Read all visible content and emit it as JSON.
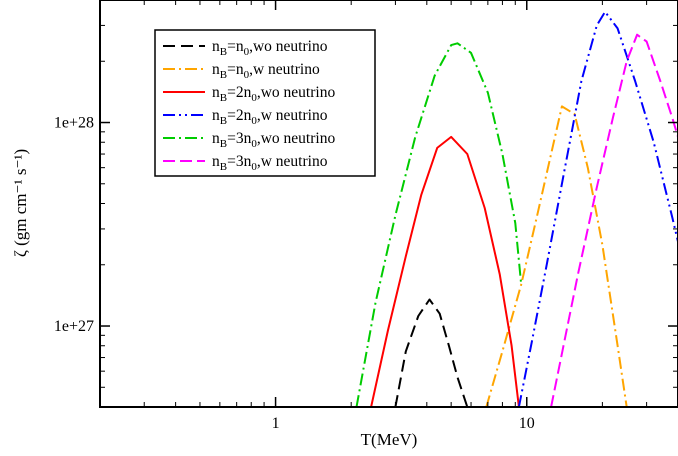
{
  "chart_data": {
    "type": "line",
    "xlabel": "T(MeV)",
    "ylabel": "ζ (gm cm⁻¹ s⁻¹)",
    "x_scale": "log",
    "y_scale": "log",
    "xlim": [
      0.2,
      40
    ],
    "ylim": [
      4e+26,
      4e+28
    ],
    "x_ticks": [
      {
        "value": 1,
        "label": "1"
      },
      {
        "value": 10,
        "label": "10"
      }
    ],
    "y_ticks": [
      {
        "value": 1e+27,
        "label": "1e+27"
      },
      {
        "value": 1e+28,
        "label": "1e+28"
      }
    ],
    "legend_position": "top-left",
    "grid": false,
    "series": [
      {
        "name": "n_B=n_0,wo neutrino",
        "legend": {
          "pre": "n",
          "sub1": "B",
          "mid": "=n",
          "sub2": "0",
          "post": ",wo neutrino"
        },
        "color": "#000000",
        "dash": "12,6",
        "x": [
          3.0,
          3.3,
          3.7,
          4.1,
          4.5,
          4.9,
          5.3,
          5.8
        ],
        "y": [
          4e+26,
          7.5e+26,
          1.12e+27,
          1.35e+27,
          1.15e+27,
          8e+26,
          5.6e+26,
          4e+26
        ]
      },
      {
        "name": "n_B=n_0,w neutrino",
        "legend": {
          "pre": "n",
          "sub1": "B",
          "mid": "=n",
          "sub2": "0",
          "post": ",w neutrino"
        },
        "color": "#ffa500",
        "dash": "12,4,2,4",
        "x": [
          6.9,
          8.0,
          9.5,
          11.0,
          12.5,
          13.8,
          15.5,
          17.5,
          20.0,
          23.0,
          25.0
        ],
        "y": [
          4e+26,
          7.5e+26,
          1.6e+27,
          3.5e+27,
          7e+27,
          1.2e+28,
          1.1e+28,
          6e+27,
          2.5e+27,
          8e+26,
          4e+26
        ]
      },
      {
        "name": "n_B=2n_0,wo neutrino",
        "legend": {
          "pre": "n",
          "sub1": "B",
          "mid": "=2n",
          "sub2": "0",
          "post": ",wo neutrino"
        },
        "color": "#ff0000",
        "dash": "",
        "x": [
          2.4,
          2.8,
          3.3,
          3.8,
          4.4,
          5.0,
          5.8,
          6.8,
          7.8,
          8.7,
          9.3
        ],
        "y": [
          4e+26,
          9.5e+26,
          2.2e+27,
          4.4e+27,
          7.5e+27,
          8.5e+27,
          7e+27,
          3.8e+27,
          1.8e+27,
          8e+26,
          4e+26
        ]
      },
      {
        "name": "n_B=2n_0,w neutrino",
        "legend": {
          "pre": "n",
          "sub1": "B",
          "mid": "=2n",
          "sub2": "0",
          "post": ",w neutrino"
        },
        "color": "#0000ff",
        "dash": "12,4,2,4,2,4",
        "x": [
          9.3,
          10.5,
          12.0,
          14.0,
          16.5,
          19.0,
          20.5,
          23.0,
          27.0,
          32.0,
          38.0,
          40.0
        ],
        "y": [
          4e+26,
          8.5e+26,
          2e+27,
          5.5e+27,
          1.6e+28,
          3e+28,
          3.5e+28,
          2.9e+28,
          1.6e+28,
          8e+27,
          3.4e+27,
          2.6e+27
        ]
      },
      {
        "name": "n_B=3n_0,wo neutrino",
        "legend": {
          "pre": "n",
          "sub1": "B",
          "mid": "=3n",
          "sub2": "0",
          "post": ",wo neutrino"
        },
        "color": "#00cc00",
        "dash": "12,4,2,4",
        "x": [
          2.1,
          2.5,
          3.0,
          3.6,
          4.3,
          5.0,
          5.3,
          6.0,
          7.0,
          8.0,
          9.0,
          9.5
        ],
        "y": [
          4e+26,
          1.3e+27,
          3.5e+27,
          8.5e+27,
          1.7e+28,
          2.4e+28,
          2.45e+28,
          2.2e+28,
          1.4e+28,
          7e+27,
          3.2e+27,
          1.6e+27
        ]
      },
      {
        "name": "n_B=3n_0,w neutrino",
        "legend": {
          "pre": "n",
          "sub1": "B",
          "mid": "=3n",
          "sub2": "0",
          "post": ",w neutrino"
        },
        "color": "#ff00ff",
        "dash": "12,5",
        "x": [
          12.5,
          14.0,
          16.0,
          19.0,
          22.0,
          25.0,
          27.5,
          30.0,
          34.0,
          38.0,
          40.0
        ],
        "y": [
          4e+26,
          8e+26,
          1.8e+27,
          4.8e+27,
          1.05e+28,
          2e+28,
          2.7e+28,
          2.5e+28,
          1.6e+28,
          1.05e+28,
          8.5e+27
        ]
      }
    ]
  }
}
